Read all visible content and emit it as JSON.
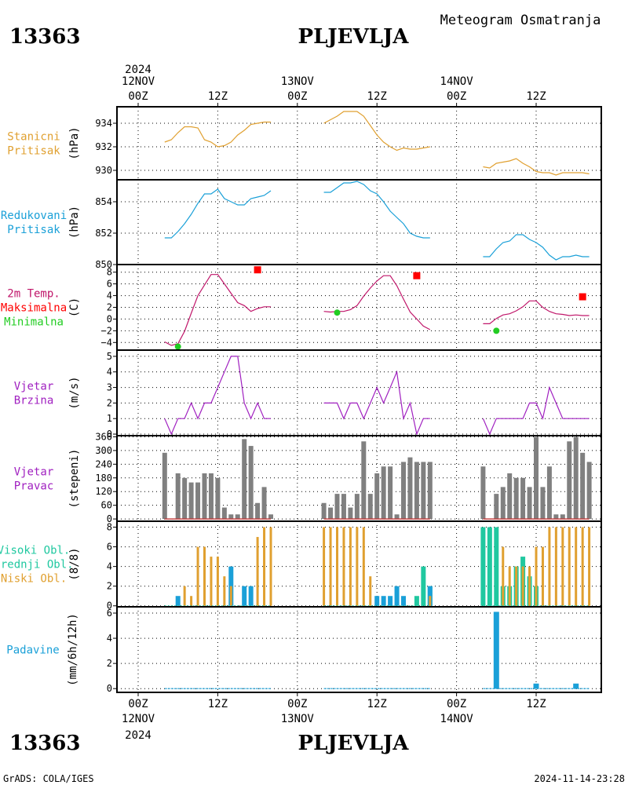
{
  "header": {
    "station_id_top": "13363",
    "station_name_top": "PLJEVLJA",
    "subtitle": "Meteogram Osmatranja",
    "station_id_bottom": "13363",
    "station_name_bottom": "PLJEVLJA"
  },
  "footer": {
    "left": "GrADS: COLA/IGES",
    "right": "2024-11-14-23:28"
  },
  "time_axis": {
    "year": "2024",
    "start_hour": 0,
    "end_hour": 70,
    "day_labels": [
      {
        "hour": 0,
        "day": "12NOV",
        "time": "00Z"
      },
      {
        "hour": 24,
        "day": "13NOV",
        "time": "00Z"
      },
      {
        "hour": 48,
        "day": "14NOV",
        "time": "00Z"
      }
    ],
    "noon_labels": [
      {
        "hour": 12,
        "time": "12Z"
      },
      {
        "hour": 36,
        "time": "12Z"
      },
      {
        "hour": 60,
        "time": "12Z"
      }
    ]
  },
  "colors": {
    "pressure": "#e0a030",
    "reduced_pressure": "#1aa0d8",
    "temperature": "#c0166a",
    "max_temp": "#ff0000",
    "min_temp": "#22cc22",
    "wind_speed": "#a020c0",
    "wind_dir": "#808080",
    "wind_base": "#c04040",
    "high_cloud": "#20c8a0",
    "mid_cloud": "#1aa0d8",
    "low_cloud": "#e0a030",
    "precip": "#1aa0d8",
    "grid": "#000000"
  },
  "chart_data": [
    {
      "id": "station_pressure",
      "type": "line",
      "label_lines": [
        "Stanicni",
        "Pritisak"
      ],
      "unit": "(hPa)",
      "ylim": [
        929.2,
        935.4
      ],
      "yticks": [
        930,
        932,
        934
      ],
      "segments": [
        {
          "x": [
            4,
            5,
            6,
            7,
            8,
            9,
            10,
            11,
            12,
            13,
            14,
            15,
            16,
            17,
            18,
            19,
            20
          ],
          "y": [
            932.4,
            932.6,
            933.2,
            933.7,
            933.7,
            933.6,
            932.6,
            932.4,
            932.0,
            932.1,
            932.4,
            933.0,
            933.4,
            933.9,
            934.0,
            934.1,
            934.1
          ]
        },
        {
          "x": [
            28,
            29,
            30,
            31,
            32,
            33,
            34,
            35,
            36,
            37,
            38,
            39,
            40,
            41,
            42,
            43,
            44
          ],
          "y": [
            934.0,
            934.3,
            934.6,
            935.0,
            935.0,
            935.0,
            934.6,
            933.8,
            933.0,
            932.4,
            932.0,
            931.7,
            931.9,
            931.8,
            931.8,
            931.9,
            932.0
          ]
        },
        {
          "x": [
            52,
            53,
            54,
            55,
            56,
            57,
            58,
            59,
            60,
            61,
            62,
            63,
            64,
            65,
            66,
            67,
            68
          ],
          "y": [
            930.3,
            930.2,
            930.6,
            930.7,
            930.8,
            931.0,
            930.6,
            930.3,
            929.9,
            929.8,
            929.8,
            929.6,
            929.8,
            929.8,
            929.8,
            929.8,
            929.7
          ]
        }
      ]
    },
    {
      "id": "reduced_pressure",
      "type": "line",
      "label_lines": [
        "Redukovani",
        "Pritisak"
      ],
      "unit": "(hPa)",
      "ylim": [
        850.0,
        855.4
      ],
      "yticks": [
        850,
        852,
        854
      ],
      "segments": [
        {
          "x": [
            4,
            5,
            6,
            7,
            8,
            9,
            10,
            11,
            12,
            13,
            14,
            15,
            16,
            17,
            18,
            19,
            20
          ],
          "y": [
            851.7,
            851.7,
            852.1,
            852.6,
            853.2,
            853.9,
            854.5,
            854.5,
            854.8,
            854.2,
            854.0,
            853.8,
            853.8,
            854.2,
            854.3,
            854.4,
            854.7
          ]
        },
        {
          "x": [
            28,
            29,
            30,
            31,
            32,
            33,
            34,
            35,
            36,
            37,
            38,
            39,
            40,
            41,
            42,
            43,
            44
          ],
          "y": [
            854.6,
            854.6,
            854.9,
            855.2,
            855.2,
            855.3,
            855.1,
            854.7,
            854.5,
            854.0,
            853.4,
            853.0,
            852.6,
            852.0,
            851.8,
            851.7,
            851.7
          ]
        },
        {
          "x": [
            52,
            53,
            54,
            55,
            56,
            57,
            58,
            59,
            60,
            61,
            62,
            63,
            64,
            65,
            66,
            67,
            68
          ],
          "y": [
            850.5,
            850.5,
            851.0,
            851.4,
            851.5,
            851.9,
            851.9,
            851.6,
            851.4,
            851.1,
            850.6,
            850.3,
            850.5,
            850.5,
            850.6,
            850.5,
            850.5
          ]
        }
      ]
    },
    {
      "id": "temperature",
      "type": "line",
      "label_lines": [
        "2m Temp.",
        "Maksimalna",
        "Minimalna"
      ],
      "unit": "(C)",
      "ylim": [
        -5.3,
        9.3
      ],
      "yticks": [
        -4,
        -2,
        0,
        2,
        4,
        6,
        8
      ],
      "segments": [
        {
          "x": [
            4,
            5,
            6,
            7,
            8,
            9,
            10,
            11,
            12,
            13,
            14,
            15,
            16,
            17,
            18,
            19,
            20
          ],
          "y": [
            -3.9,
            -4.5,
            -4.2,
            -2.1,
            1.0,
            4.0,
            5.8,
            7.6,
            7.6,
            6.0,
            4.4,
            2.8,
            2.3,
            1.3,
            1.8,
            2.1,
            2.1
          ]
        },
        {
          "x": [
            28,
            29,
            30,
            31,
            32,
            33,
            34,
            35,
            36,
            37,
            38,
            39,
            40,
            41,
            42,
            43,
            44
          ],
          "y": [
            1.3,
            1.2,
            1.3,
            1.3,
            1.6,
            2.3,
            3.9,
            5.3,
            6.5,
            7.4,
            7.4,
            5.7,
            3.4,
            1.2,
            0.0,
            -1.2,
            -1.8
          ]
        },
        {
          "x": [
            52,
            53,
            54,
            55,
            56,
            57,
            58,
            59,
            60,
            61,
            62,
            63,
            64,
            65,
            66,
            67,
            68
          ],
          "y": [
            -0.8,
            -0.8,
            0.1,
            0.7,
            0.9,
            1.4,
            2.1,
            3.1,
            3.1,
            2.0,
            1.3,
            0.9,
            0.8,
            0.6,
            0.7,
            0.6,
            0.6
          ]
        }
      ],
      "max_points": {
        "x": [
          18,
          42,
          67
        ],
        "y": [
          8.4,
          7.4,
          3.8
        ]
      },
      "min_points": {
        "x": [
          6,
          30,
          54
        ],
        "y": [
          -4.7,
          1.1,
          -2.0
        ]
      }
    },
    {
      "id": "wind_speed",
      "type": "line",
      "label_lines": [
        "Vjetar",
        "Brzina"
      ],
      "unit": "(m/s)",
      "ylim": [
        -0.1,
        5.4
      ],
      "yticks": [
        0,
        1,
        2,
        3,
        4,
        5
      ],
      "segments": [
        {
          "x": [
            4,
            5,
            6,
            7,
            8,
            9,
            10,
            11,
            12,
            13,
            14,
            15,
            16,
            17,
            18,
            19,
            20
          ],
          "y": [
            1,
            0,
            1,
            1,
            2,
            1,
            2,
            2,
            3,
            4,
            5,
            5,
            2,
            1,
            2,
            1,
            1
          ]
        },
        {
          "x": [
            28,
            29,
            30,
            31,
            32,
            33,
            34,
            35,
            36,
            37,
            38,
            39,
            40,
            41,
            42,
            43,
            44
          ],
          "y": [
            2,
            2,
            2,
            1,
            2,
            2,
            1,
            2,
            3,
            2,
            3,
            4,
            1,
            2,
            0,
            1,
            1
          ]
        },
        {
          "x": [
            52,
            53,
            54,
            55,
            56,
            57,
            58,
            59,
            60,
            61,
            62,
            63,
            64,
            65,
            66,
            67,
            68
          ],
          "y": [
            1,
            0,
            1,
            1,
            1,
            1,
            1,
            2,
            2,
            1,
            3,
            2,
            1,
            1,
            1,
            1,
            1
          ]
        }
      ]
    },
    {
      "id": "wind_direction",
      "type": "bar",
      "label_lines": [
        "Vjetar",
        "Pravac"
      ],
      "unit": "(stepeni)",
      "ylim": [
        -10,
        365
      ],
      "yticks": [
        0,
        60,
        120,
        180,
        240,
        300,
        360
      ],
      "x": [
        4,
        5,
        6,
        7,
        8,
        9,
        10,
        11,
        12,
        13,
        14,
        15,
        16,
        17,
        18,
        19,
        20,
        28,
        29,
        30,
        31,
        32,
        33,
        34,
        35,
        36,
        37,
        38,
        39,
        40,
        41,
        42,
        43,
        44,
        52,
        53,
        54,
        55,
        56,
        57,
        58,
        59,
        60,
        61,
        62,
        63,
        64,
        65,
        66,
        67,
        68
      ],
      "values": [
        290,
        0,
        200,
        180,
        160,
        160,
        200,
        200,
        180,
        50,
        20,
        20,
        350,
        320,
        70,
        140,
        20,
        70,
        50,
        110,
        110,
        50,
        110,
        340,
        110,
        200,
        230,
        230,
        20,
        250,
        270,
        250,
        250,
        250,
        230,
        0,
        110,
        140,
        200,
        180,
        180,
        140,
        360,
        140,
        230,
        20,
        20,
        340,
        360,
        290,
        250
      ]
    },
    {
      "id": "clouds",
      "type": "bar",
      "label_lines": [
        "Visoki Obl.",
        "Srednji Obl.",
        "Niski Obl."
      ],
      "unit": "(8/8)",
      "ylim": [
        -0.1,
        8.6
      ],
      "yticks": [
        0,
        2,
        4,
        6,
        8
      ],
      "x": [
        4,
        5,
        6,
        7,
        8,
        9,
        10,
        11,
        12,
        13,
        14,
        15,
        16,
        17,
        18,
        19,
        20,
        28,
        29,
        30,
        31,
        32,
        33,
        34,
        35,
        36,
        37,
        38,
        39,
        40,
        41,
        42,
        43,
        44,
        52,
        53,
        54,
        55,
        56,
        57,
        58,
        59,
        60,
        61,
        62,
        63,
        64,
        65,
        66,
        67,
        68
      ],
      "series": [
        {
          "name": "Visoki Obl.",
          "values": [
            0,
            0,
            0,
            0,
            0,
            0,
            0,
            0,
            0,
            0,
            0,
            0,
            0,
            0,
            0,
            0,
            0,
            0,
            0,
            0,
            0,
            0,
            0,
            0,
            0,
            0,
            0,
            0,
            0,
            0,
            0,
            1,
            4,
            2,
            8,
            8,
            8,
            2,
            2,
            4,
            5,
            3,
            2,
            0,
            0,
            0,
            0,
            0,
            0,
            0,
            0
          ]
        },
        {
          "name": "Srednji Obl.",
          "values": [
            0,
            0,
            1,
            0,
            0,
            0,
            0,
            0,
            0,
            0,
            4,
            0,
            2,
            2,
            0,
            0,
            0,
            0,
            0,
            0,
            0,
            0,
            0,
            0,
            0,
            1,
            1,
            1,
            2,
            1,
            0,
            0,
            0,
            2,
            0,
            0,
            0,
            0,
            0,
            0,
            0,
            0,
            0,
            0,
            0,
            0,
            0,
            0,
            0,
            0,
            0
          ]
        },
        {
          "name": "Niski Obl.",
          "values": [
            0,
            0,
            0,
            2,
            1,
            6,
            6,
            5,
            5,
            3,
            2,
            0,
            0,
            0,
            7,
            8,
            8,
            8,
            8,
            8,
            8,
            8,
            8,
            8,
            3,
            0,
            0,
            0,
            0,
            0,
            0,
            0,
            0,
            1,
            0,
            0,
            0,
            6,
            4,
            4,
            4,
            4,
            6,
            6,
            8,
            8,
            8,
            8,
            8,
            8,
            8
          ]
        }
      ]
    },
    {
      "id": "precipitation",
      "type": "bar",
      "label_lines": [
        "Padavine"
      ],
      "unit": "(mm/6h/12h)",
      "ylim": [
        -0.3,
        6.5
      ],
      "yticks": [
        0,
        2,
        4,
        6
      ],
      "bars": {
        "x": [
          54,
          60,
          66
        ],
        "values": [
          6.1,
          0.4,
          0.4
        ]
      },
      "trace_segments": [
        [
          4,
          20
        ],
        [
          28,
          44
        ],
        [
          52,
          68
        ]
      ]
    }
  ]
}
